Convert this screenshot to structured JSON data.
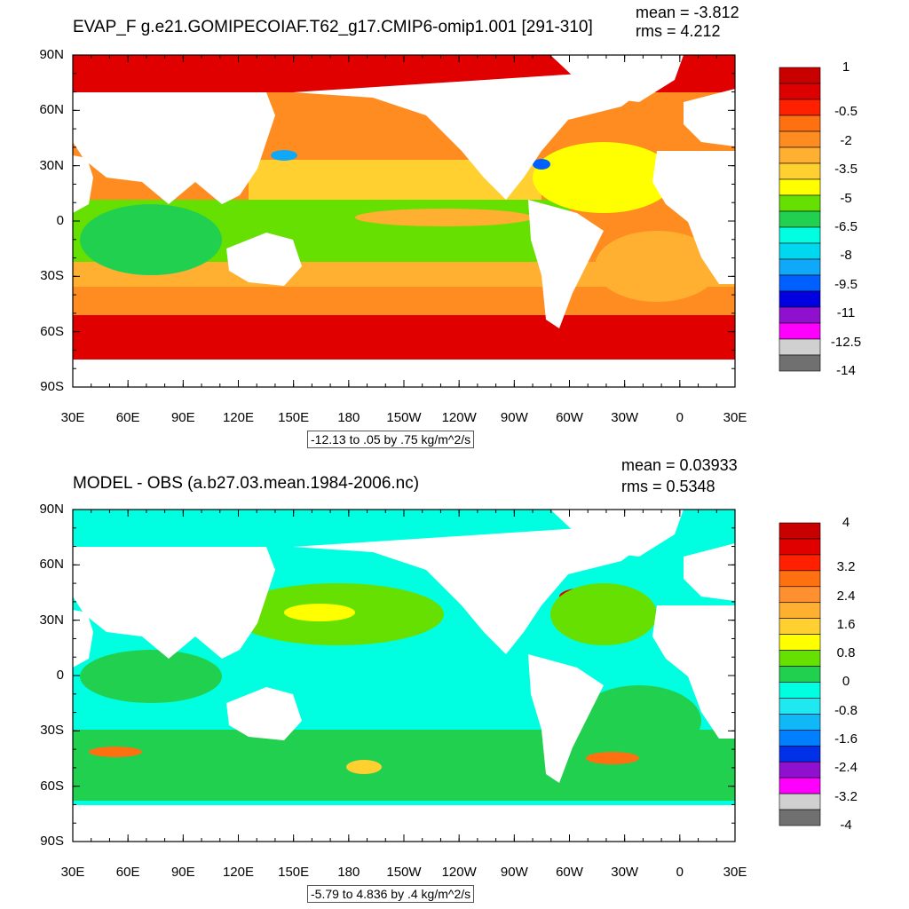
{
  "panels": [
    {
      "title": "EVAP_F g.e21.GOMIPECOIAF.T62_g17.CMIP6-omip1.001 [291-310]",
      "mean_text": "mean = -3.812",
      "rms_text": "rms = 4.212",
      "subtitle": "-12.13 to .05 by .75 kg/m^2/s",
      "colorbar_labels": [
        "1",
        "-0.5",
        "-2",
        "-3.5",
        "-5",
        "-6.5",
        "-8",
        "-9.5",
        "-11",
        "-12.5",
        "-14"
      ],
      "colorbar_colors": [
        "#c80000",
        "#dc0000",
        "#ff2000",
        "#ff7010",
        "#ff8c20",
        "#ffb030",
        "#ffd030",
        "#ffff00",
        "#66e000",
        "#22d050",
        "#00ffe0",
        "#00d8f0",
        "#10a8f8",
        "#0060ff",
        "#0000e0",
        "#9010d0",
        "#ff00ff",
        "#d0d0d0",
        "#707070"
      ]
    },
    {
      "title": "MODEL - OBS (a.b27.03.mean.1984-2006.nc)",
      "mean_text": "mean = 0.03933",
      "rms_text": "rms = 0.5348",
      "subtitle": "-5.79 to 4.836 by .4 kg/m^2/s",
      "colorbar_labels": [
        "4",
        "3.2",
        "2.4",
        "1.6",
        "0.8",
        "0",
        "-0.8",
        "-1.6",
        "-2.4",
        "-3.2",
        "-4"
      ],
      "colorbar_colors": [
        "#c80000",
        "#e00000",
        "#ff2000",
        "#ff7010",
        "#ff9030",
        "#ffb030",
        "#ffd030",
        "#ffff00",
        "#66e000",
        "#22d050",
        "#00ffe0",
        "#20e8f0",
        "#10b8f8",
        "#0080ff",
        "#0030e8",
        "#9010d0",
        "#ff00ff",
        "#d0d0d0",
        "#707070"
      ]
    }
  ],
  "chart_data": [
    {
      "type": "heatmap",
      "title": "EVAP_F g.e21.GOMIPECOIAF.T62_g17.CMIP6-omip1.001 [291-310]",
      "subtitle": "-12.13 to .05 by .75 kg/m^2/s",
      "mean": -3.812,
      "rms": 4.212,
      "x_tick_labels": [
        "30E",
        "60E",
        "90E",
        "120E",
        "150E",
        "180",
        "150W",
        "120W",
        "90W",
        "60W",
        "30W",
        "0",
        "30E"
      ],
      "y_tick_labels": [
        "90N",
        "60N",
        "30N",
        "0",
        "30S",
        "60S",
        "90S"
      ],
      "xlim": [
        30,
        390
      ],
      "ylim": [
        -90,
        90
      ],
      "colorbar_levels": [
        1,
        -0.5,
        -2,
        -3.5,
        -5,
        -6.5,
        -8,
        -9.5,
        -11,
        -12.5,
        -14
      ]
    },
    {
      "type": "heatmap",
      "title": "MODEL - OBS (a.b27.03.mean.1984-2006.nc)",
      "subtitle": "-5.79 to 4.836 by .4 kg/m^2/s",
      "mean": 0.03933,
      "rms": 0.5348,
      "x_tick_labels": [
        "30E",
        "60E",
        "90E",
        "120E",
        "150E",
        "180",
        "150W",
        "120W",
        "90W",
        "60W",
        "30W",
        "0",
        "30E"
      ],
      "y_tick_labels": [
        "90N",
        "60N",
        "30N",
        "0",
        "30S",
        "60S",
        "90S"
      ],
      "xlim": [
        30,
        390
      ],
      "ylim": [
        -90,
        90
      ],
      "colorbar_levels": [
        4,
        3.2,
        2.4,
        1.6,
        0.8,
        0,
        -0.8,
        -1.6,
        -2.4,
        -3.2,
        -4
      ]
    }
  ]
}
